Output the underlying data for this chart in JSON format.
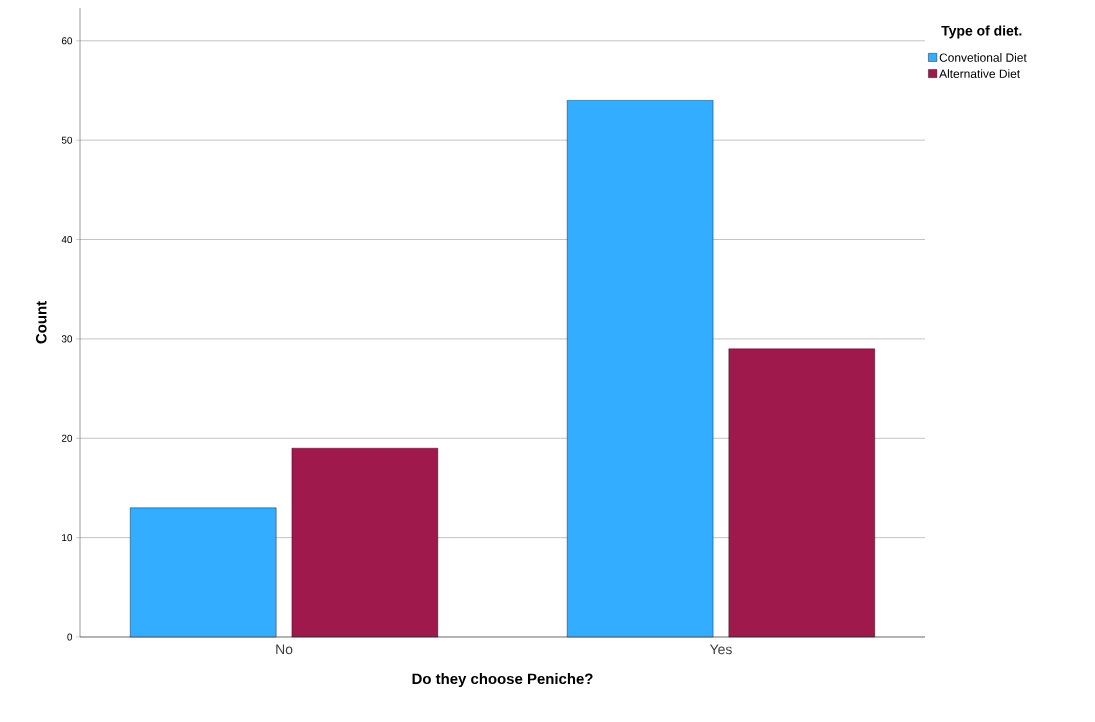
{
  "chart_data": {
    "type": "bar",
    "xlabel": "Do they choose Peniche?",
    "ylabel": "Count",
    "legend_title": "Type of diet.",
    "categories": [
      "No",
      "Yes"
    ],
    "series": [
      {
        "name": "Convetional Diet",
        "color": "#33adff",
        "values": [
          13,
          54
        ]
      },
      {
        "name": "Alternative Diet",
        "color": "#a0194d",
        "values": [
          19,
          29
        ]
      }
    ],
    "ylim": [
      0,
      63.3
    ],
    "yticks": [
      0,
      10,
      20,
      30,
      40,
      50,
      60
    ],
    "grid": "y",
    "legend": "top right"
  }
}
